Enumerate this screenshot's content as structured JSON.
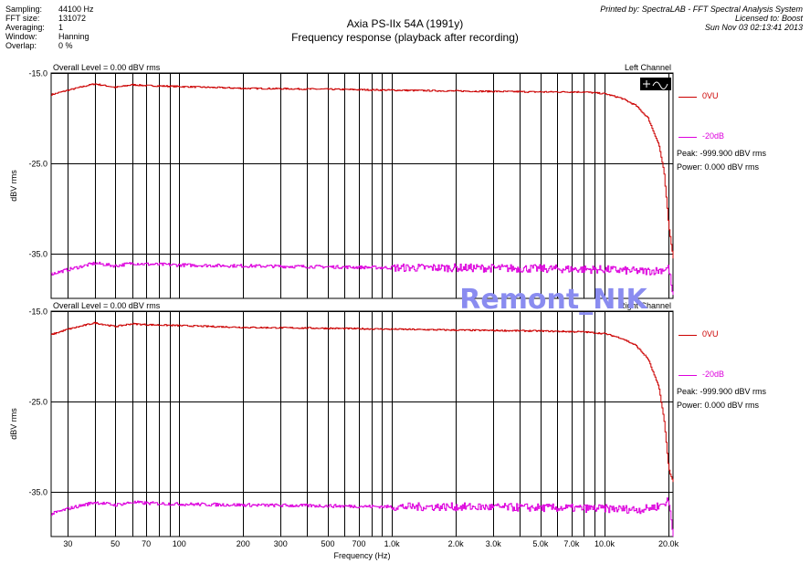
{
  "header": {
    "info": [
      {
        "key": "Sampling:",
        "value": "44100 Hz"
      },
      {
        "key": "FFT size:",
        "value": "131072"
      },
      {
        "key": "Averaging:",
        "value": "1"
      },
      {
        "key": "Window:",
        "value": "Hanning"
      },
      {
        "key": "Overlap:",
        "value": "0 %"
      }
    ],
    "printed_by": "Printed by: SpectraLAB - FFT Spectral Analysis System",
    "licensed_to": "Licensed to: Boost",
    "date": "Sun Nov 03 02:13:41 2013",
    "title": "Axia PS-IIx 54A (1991y)",
    "subtitle": "Frequency response (playback after recording)"
  },
  "watermark": "Remont_NIK",
  "colors": {
    "red": "#cc0000",
    "magenta": "#dd00dd",
    "watermark": "#8a8cf0"
  },
  "chart_data": [
    {
      "type": "line",
      "title": "Left Channel",
      "overall_level": "Overall Level = 0.00 dBV rms",
      "ylabel": "dBV rms",
      "xlabel": "Frequency (Hz)",
      "x_scale": "log",
      "xlim": [
        25,
        21000
      ],
      "ylim": [
        -40,
        -15
      ],
      "y_ticks": [
        "-15.0",
        "-25.0",
        "-35.0"
      ],
      "y_tick_values": [
        -15,
        -25,
        -35
      ],
      "grid": true,
      "legend_position": "right",
      "series": [
        {
          "name": "0VU",
          "color": "#cc0000",
          "x": [
            25,
            30,
            40,
            50,
            60,
            70,
            100,
            200,
            500,
            1000,
            2000,
            5000,
            8000,
            10000,
            12000,
            14000,
            16000,
            18000,
            19000,
            20000,
            21000
          ],
          "y": [
            -17.4,
            -16.9,
            -16.2,
            -16.6,
            -16.3,
            -16.4,
            -16.5,
            -16.7,
            -16.8,
            -16.9,
            -17.0,
            -17.1,
            -17.1,
            -17.3,
            -17.8,
            -18.6,
            -20.0,
            -23.0,
            -26.0,
            -32.0,
            -35.5
          ]
        },
        {
          "name": "-20dB",
          "color": "#dd00dd",
          "x": [
            25,
            30,
            40,
            50,
            60,
            70,
            100,
            200,
            500,
            1000,
            2000,
            5000,
            10000,
            15000,
            18000,
            20000,
            21000
          ],
          "y": [
            -37.3,
            -36.8,
            -36.1,
            -36.4,
            -36.1,
            -36.2,
            -36.3,
            -36.4,
            -36.5,
            -36.6,
            -36.6,
            -36.7,
            -36.8,
            -37.0,
            -36.9,
            -36.6,
            -40.0
          ]
        }
      ],
      "readout": {
        "peak": "Peak: -999.900 dBV rms",
        "power": "Power: 0.000 dBV rms"
      }
    },
    {
      "type": "line",
      "title": "Right Channel",
      "overall_level": "Overall Level = 0.00 dBV rms",
      "ylabel": "dBV rms",
      "xlabel": "Frequency (Hz)",
      "x_scale": "log",
      "xlim": [
        25,
        21000
      ],
      "ylim": [
        -40,
        -15
      ],
      "y_ticks": [
        "-15.0",
        "-25.0",
        "-35.0"
      ],
      "y_tick_values": [
        -15,
        -25,
        -35
      ],
      "x_ticks": [
        "30",
        "50",
        "70",
        "100",
        "200",
        "300",
        "500",
        "700",
        "1.0k",
        "2.0k",
        "3.0k",
        "5.0k",
        "7.0k",
        "10.0k",
        "20.0k"
      ],
      "x_tick_values": [
        30,
        50,
        70,
        100,
        200,
        300,
        500,
        700,
        1000,
        2000,
        3000,
        5000,
        7000,
        10000,
        20000
      ],
      "grid": true,
      "legend_position": "right",
      "series": [
        {
          "name": "0VU",
          "color": "#cc0000",
          "x": [
            25,
            30,
            40,
            50,
            60,
            70,
            100,
            200,
            500,
            1000,
            2000,
            5000,
            8000,
            10000,
            12000,
            14000,
            16000,
            18000,
            19000,
            20000,
            21000
          ],
          "y": [
            -17.6,
            -17.0,
            -16.3,
            -16.7,
            -16.4,
            -16.5,
            -16.6,
            -16.8,
            -16.9,
            -17.0,
            -17.1,
            -17.2,
            -17.3,
            -17.5,
            -18.0,
            -18.8,
            -20.3,
            -23.5,
            -27.0,
            -32.5,
            -34.0
          ]
        },
        {
          "name": "-20dB",
          "color": "#dd00dd",
          "x": [
            25,
            30,
            40,
            50,
            60,
            70,
            100,
            200,
            500,
            1000,
            2000,
            5000,
            10000,
            15000,
            18000,
            20000,
            21000
          ],
          "y": [
            -37.5,
            -36.9,
            -36.2,
            -36.5,
            -36.2,
            -36.3,
            -36.4,
            -36.5,
            -36.6,
            -36.7,
            -36.7,
            -36.8,
            -36.9,
            -37.0,
            -36.6,
            -36.0,
            -40.0
          ]
        }
      ],
      "readout": {
        "peak": "Peak: -999.900 dBV rms",
        "power": "Power: 0.000 dBV rms"
      }
    }
  ]
}
